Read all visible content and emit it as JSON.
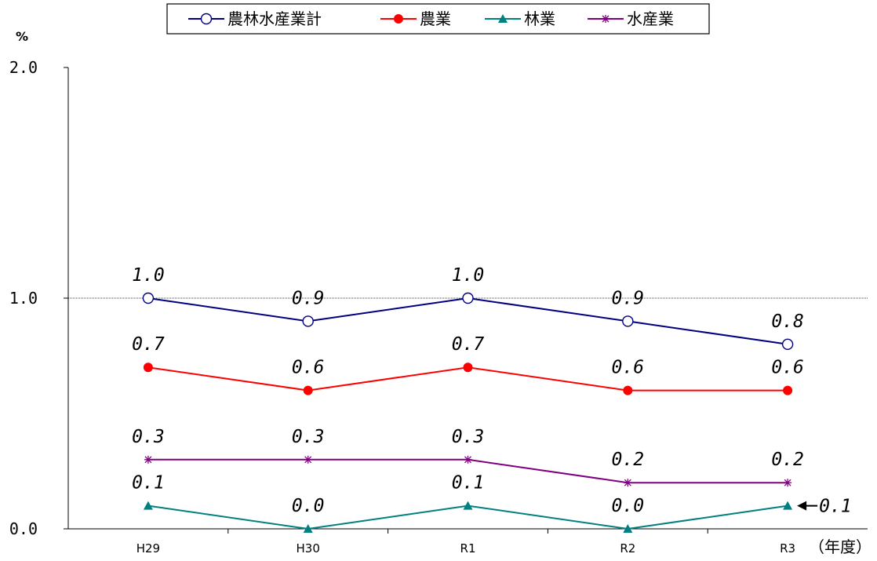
{
  "chart_data": {
    "type": "line",
    "y_unit": "%",
    "x_unit": "（年度）",
    "categories": [
      "H29",
      "H30",
      "R1",
      "R2",
      "R3"
    ],
    "ylim": [
      0.0,
      2.0
    ],
    "y_ticks": [
      "0.0",
      "1.0",
      "2.0"
    ],
    "reference_line": 1.0,
    "grid": false,
    "legend_position": "top",
    "series": [
      {
        "name": "農林水産業計",
        "color": "#000080",
        "marker": "open-circle",
        "values": [
          1.0,
          0.9,
          1.0,
          0.9,
          0.8
        ],
        "labels": [
          "1.0",
          "0.9",
          "1.0",
          "0.9",
          "0.8"
        ]
      },
      {
        "name": "農業",
        "color": "#ff0000",
        "marker": "filled-circle",
        "values": [
          0.7,
          0.6,
          0.7,
          0.6,
          0.6
        ],
        "labels": [
          "0.7",
          "0.6",
          "0.7",
          "0.6",
          "0.6"
        ]
      },
      {
        "name": "林業",
        "color": "#008080",
        "marker": "triangle",
        "values": [
          0.1,
          0.0,
          0.1,
          0.0,
          0.1
        ],
        "labels": [
          "0.1",
          "0.0",
          "0.1",
          "0.0",
          "0.1"
        ]
      },
      {
        "name": "水産業",
        "color": "#800080",
        "marker": "asterisk",
        "values": [
          0.3,
          0.3,
          0.3,
          0.2,
          0.2
        ],
        "labels": [
          "0.3",
          "0.3",
          "0.3",
          "0.2",
          "0.2"
        ]
      }
    ]
  }
}
